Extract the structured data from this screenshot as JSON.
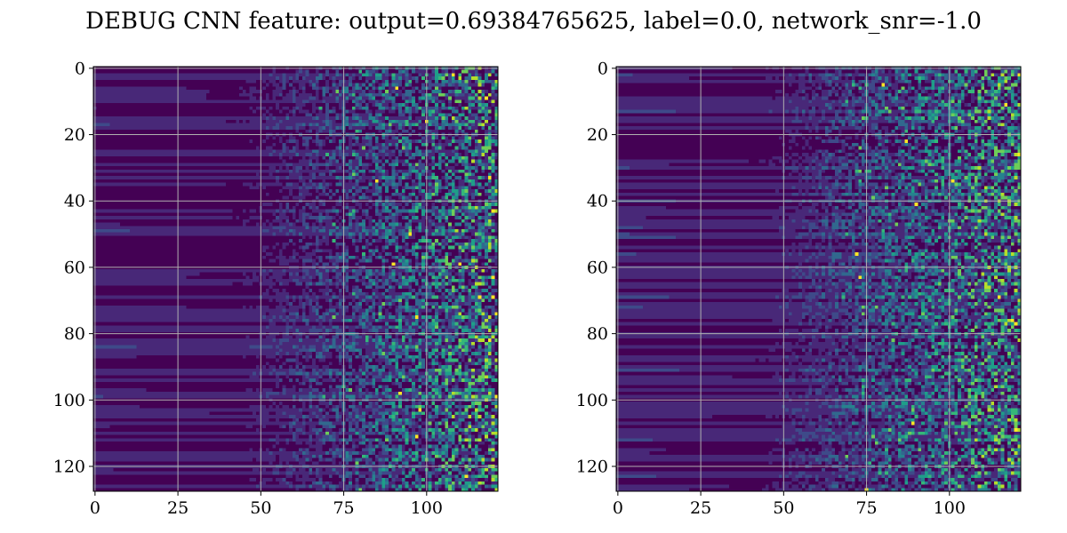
{
  "figure": {
    "title": "DEBUG CNN feature: output=0.69384765625, label=0.0, network_snr=-1.0"
  },
  "colors": {
    "viridis": [
      "#440154",
      "#482878",
      "#3e4a89",
      "#31688e",
      "#26828e",
      "#1f9e89",
      "#35b779",
      "#6ece58",
      "#b5de2b",
      "#fde725"
    ],
    "grid": "#b0b0b0",
    "frame": "#000000"
  },
  "chart_data": [
    {
      "type": "heatmap",
      "colormap": "viridis",
      "rows": 128,
      "cols": 122,
      "xlim": [
        -0.5,
        121.5
      ],
      "ylim": [
        127.5,
        -0.5
      ],
      "y_inverted": true,
      "grid": true,
      "xticks": [
        0,
        25,
        50,
        75,
        100
      ],
      "yticks": [
        0,
        20,
        40,
        60,
        80,
        100,
        120
      ],
      "xtick_labels": [
        "0",
        "25",
        "50",
        "75",
        "100"
      ],
      "ytick_labels": [
        "0",
        "20",
        "40",
        "60",
        "80",
        "100",
        "120"
      ],
      "hot_spots": [
        [
          2,
          108
        ],
        [
          6,
          91
        ],
        [
          16,
          100
        ],
        [
          34,
          85
        ],
        [
          50,
          95
        ],
        [
          59,
          90
        ],
        [
          59,
          110
        ],
        [
          75,
          97
        ],
        [
          98,
          92
        ],
        [
          103,
          98
        ],
        [
          111,
          97
        ],
        [
          123,
          112
        ]
      ]
    },
    {
      "type": "heatmap",
      "colormap": "viridis",
      "rows": 128,
      "cols": 122,
      "xlim": [
        -0.5,
        121.5
      ],
      "ylim": [
        127.5,
        -0.5
      ],
      "y_inverted": true,
      "grid": true,
      "xticks": [
        0,
        25,
        50,
        75,
        100
      ],
      "yticks": [
        0,
        20,
        40,
        60,
        80,
        100,
        120
      ],
      "xtick_labels": [
        "0",
        "25",
        "50",
        "75",
        "100"
      ],
      "ytick_labels": [
        "0",
        "20",
        "40",
        "60",
        "80",
        "100",
        "120"
      ],
      "hot_spots": [
        [
          5,
          80
        ],
        [
          22,
          87
        ],
        [
          34,
          101
        ],
        [
          41,
          90
        ],
        [
          56,
          72
        ],
        [
          63,
          73
        ],
        [
          107,
          89
        ],
        [
          127,
          75
        ]
      ]
    }
  ]
}
